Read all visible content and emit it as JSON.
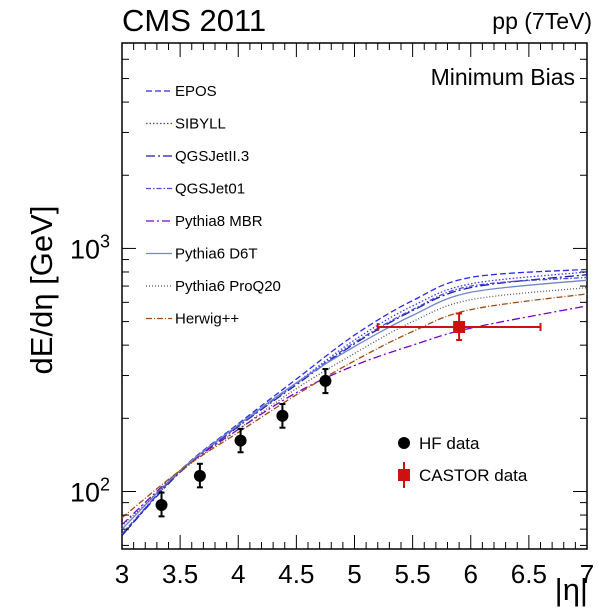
{
  "chart_data": {
    "type": "line",
    "title_left": "CMS 2011",
    "title_right": "pp (7TeV)",
    "annotation": "Minimum Bias",
    "xlabel": "|η|",
    "ylabel": "dE/dη [GeV]",
    "xlim": [
      3,
      7
    ],
    "ylim": [
      58,
      7000
    ],
    "yscale": "log",
    "grid": false,
    "xticks": [
      "3",
      "3.5",
      "4",
      "4.5",
      "5",
      "5.5",
      "6",
      "6.5",
      "7"
    ],
    "yticks": [
      {
        "value": 100,
        "label": "10",
        "exp": "2"
      },
      {
        "value": 1000,
        "label": "10",
        "exp": "3"
      }
    ],
    "legend_models": [
      {
        "name": "EPOS",
        "color": "#2a2ae0",
        "dash": "6,3",
        "values": [
          66,
          122,
          190,
          290,
          440,
          610,
          760,
          820
        ]
      },
      {
        "name": "SIBYLL",
        "color": "#3b3bff",
        "dash": "1.5,2",
        "values": [
          67,
          121,
          188,
          280,
          420,
          580,
          715,
          800
        ]
      },
      {
        "name": "QGSJetII.3",
        "color": "#1a1ab0",
        "dash": "9,3,2,3",
        "values": [
          66,
          120,
          185,
          275,
          405,
          555,
          690,
          780
        ]
      },
      {
        "name": "QGSJet01",
        "color": "#4b4bd6",
        "dash": "5,2,1.5,2",
        "values": [
          67,
          121,
          186,
          278,
          410,
          560,
          700,
          760
        ]
      },
      {
        "name": "Pythia8 MBR",
        "color": "#7a00d6",
        "dash": "8,3,2,3",
        "values": [
          73,
          122,
          180,
          255,
          330,
          400,
          470,
          580
        ]
      },
      {
        "name": "Pythia6 D6T",
        "color": "#6f86c9",
        "dash": "",
        "values": [
          70,
          122,
          188,
          280,
          395,
          530,
          660,
          740
        ]
      },
      {
        "name": "Pythia6 ProQ20",
        "color": "#555555",
        "dash": "1,2",
        "values": [
          72,
          120,
          180,
          265,
          370,
          500,
          615,
          690
        ]
      },
      {
        "name": "Herwig++",
        "color": "#a04a10",
        "dash": "6,2,1,2",
        "values": [
          78,
          122,
          175,
          250,
          345,
          455,
          560,
          650
        ]
      }
    ],
    "model_x": [
      3,
      3.5,
      4,
      4.5,
      5,
      5.5,
      6,
      7
    ],
    "data_series": [
      {
        "name": "HF data",
        "color": "#000000",
        "marker": "circle",
        "points": [
          {
            "x": 3.34,
            "y": 88,
            "ylo": 79,
            "yhi": 99
          },
          {
            "x": 3.67,
            "y": 116,
            "ylo": 104,
            "yhi": 130
          },
          {
            "x": 4.02,
            "y": 162,
            "ylo": 145,
            "yhi": 181
          },
          {
            "x": 4.38,
            "y": 205,
            "ylo": 183,
            "yhi": 229
          },
          {
            "x": 4.75,
            "y": 285,
            "ylo": 254,
            "yhi": 319
          }
        ]
      },
      {
        "name": "CASTOR data",
        "color": "#cc1111",
        "marker": "square",
        "points": [
          {
            "x": 5.9,
            "y": 475,
            "ylo": 420,
            "yhi": 540,
            "xlo": 5.2,
            "xhi": 6.6
          }
        ]
      }
    ]
  }
}
